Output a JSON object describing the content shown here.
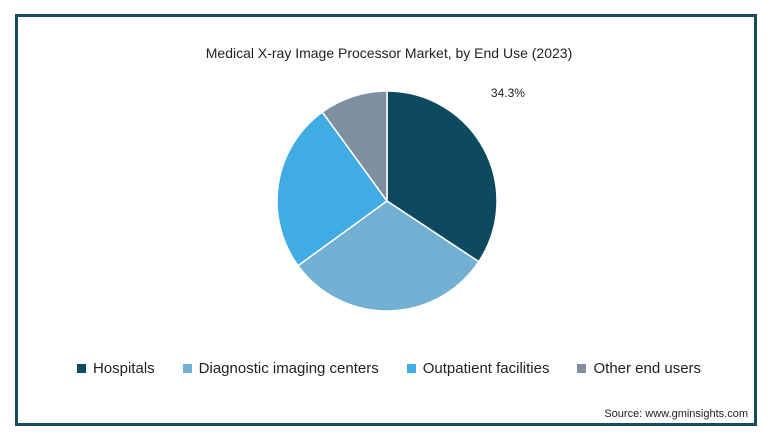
{
  "chart_data": {
    "type": "pie",
    "title": "Medical X-ray Image Processor Market, by End Use (2023)",
    "categories": [
      "Hospitals",
      "Diagnostic imaging centers",
      "Outpatient facilities",
      "Other end users"
    ],
    "values": [
      34.3,
      30.7,
      25.0,
      10.0
    ],
    "colors": [
      "#0d4a60",
      "#72b0d3",
      "#41ace3",
      "#7e8f9f"
    ],
    "data_labels": [
      "34.3%",
      "",
      "",
      ""
    ],
    "legend_position": "bottom"
  },
  "source": "Source: www.gminsights.com"
}
